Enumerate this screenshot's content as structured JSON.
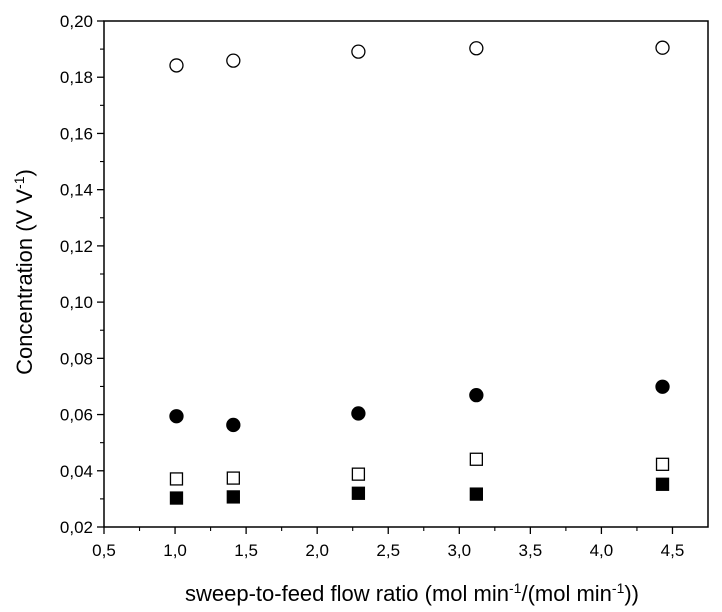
{
  "chart_data": {
    "type": "scatter",
    "title": "",
    "xlabel": {
      "parts": [
        {
          "t": "sweep-to-feed flow ratio (mol min",
          "sup": false
        },
        {
          "t": "-1",
          "sup": true
        },
        {
          "t": "/(mol min",
          "sup": false
        },
        {
          "t": "-1",
          "sup": true
        },
        {
          "t": "))",
          "sup": false
        }
      ]
    },
    "ylabel": {
      "parts": [
        {
          "t": "Concentration (V V",
          "sup": false
        },
        {
          "t": "-1",
          "sup": true
        },
        {
          "t": ")",
          "sup": false
        }
      ]
    },
    "xlim": [
      0.5,
      4.75
    ],
    "ylim": [
      0.02,
      0.2
    ],
    "x_ticks": [
      {
        "v": 0.5,
        "label": "0,5"
      },
      {
        "v": 1.0,
        "label": "1,0"
      },
      {
        "v": 1.5,
        "label": "1,5"
      },
      {
        "v": 2.0,
        "label": "2,0"
      },
      {
        "v": 2.5,
        "label": "2,5"
      },
      {
        "v": 3.0,
        "label": "3,0"
      },
      {
        "v": 3.5,
        "label": "3,5"
      },
      {
        "v": 4.0,
        "label": "4,0"
      },
      {
        "v": 4.5,
        "label": "4,5"
      }
    ],
    "y_ticks": [
      {
        "v": 0.02,
        "label": "0,02"
      },
      {
        "v": 0.04,
        "label": "0,04"
      },
      {
        "v": 0.06,
        "label": "0,06"
      },
      {
        "v": 0.08,
        "label": "0,08"
      },
      {
        "v": 0.1,
        "label": "0,10"
      },
      {
        "v": 0.12,
        "label": "0,12"
      },
      {
        "v": 0.14,
        "label": "0,14"
      },
      {
        "v": 0.16,
        "label": "0,16"
      },
      {
        "v": 0.18,
        "label": "0,18"
      },
      {
        "v": 0.2,
        "label": "0,20"
      }
    ],
    "grid": false,
    "legend": "none",
    "series": [
      {
        "marker": "circle-open",
        "x": [
          1.01,
          1.41,
          2.29,
          3.12,
          4.43
        ],
        "y": [
          0.1842,
          0.1859,
          0.1891,
          0.1903,
          0.1905
        ]
      },
      {
        "marker": "circle-filled",
        "x": [
          1.01,
          1.41,
          2.29,
          3.12,
          4.43
        ],
        "y": [
          0.0594,
          0.0563,
          0.0604,
          0.0669,
          0.0699
        ]
      },
      {
        "marker": "square-open",
        "x": [
          1.01,
          1.41,
          2.29,
          3.12,
          4.43
        ],
        "y": [
          0.0371,
          0.0374,
          0.0388,
          0.0441,
          0.0423
        ]
      },
      {
        "marker": "square-filled",
        "x": [
          1.01,
          1.41,
          2.29,
          3.12,
          4.43
        ],
        "y": [
          0.0303,
          0.0307,
          0.032,
          0.0317,
          0.0352
        ]
      }
    ]
  }
}
